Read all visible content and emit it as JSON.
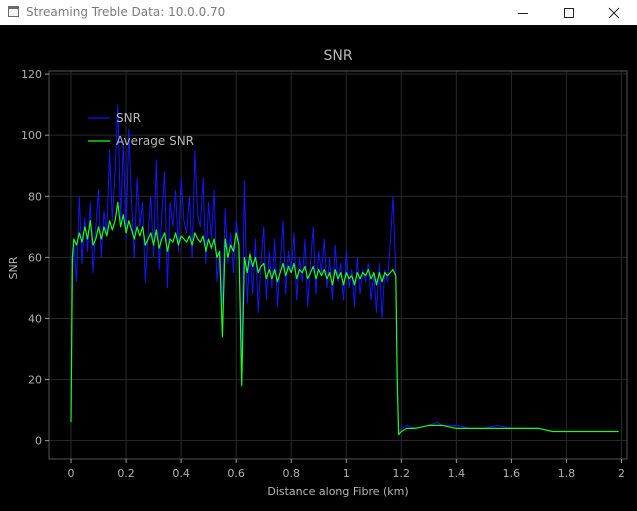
{
  "window": {
    "title": "Streaming Treble Data: 10.0.0.70"
  },
  "icons": {
    "app": "window-app-icon",
    "minimize": "minimize-icon",
    "maximize": "maximize-icon",
    "close": "close-icon"
  },
  "colors": {
    "background": "#000000",
    "axis": "#9a9a9a",
    "grid": "#2a2a2a",
    "snr": "#1414ff",
    "average_snr": "#19ff19"
  },
  "chart_data": {
    "type": "line",
    "title": "SNR",
    "xlabel": "Distance along Fibre (km)",
    "ylabel": "SNR",
    "xlim": [
      -0.08,
      2.02
    ],
    "ylim": [
      -6,
      121
    ],
    "xticks": [
      0,
      0.2,
      0.4,
      0.6,
      0.8,
      1,
      1.2,
      1.4,
      1.6,
      1.8,
      2
    ],
    "xtick_labels": [
      "0",
      "0.2",
      "0.4",
      "0.6",
      "0.8",
      "1",
      "1.2",
      "1.4",
      "1.6",
      "1.8",
      "2"
    ],
    "yticks": [
      0,
      20,
      40,
      60,
      80,
      100,
      120
    ],
    "ytick_labels": [
      "0",
      "20",
      "40",
      "60",
      "80",
      "100",
      "120"
    ],
    "grid": true,
    "legend_position": "top-left",
    "series": [
      {
        "name": "SNR",
        "color": "#1414ff",
        "x": [
          0,
          0.005,
          0.01,
          0.02,
          0.03,
          0.04,
          0.05,
          0.06,
          0.07,
          0.08,
          0.09,
          0.1,
          0.11,
          0.12,
          0.13,
          0.14,
          0.15,
          0.16,
          0.17,
          0.18,
          0.19,
          0.2,
          0.21,
          0.22,
          0.23,
          0.24,
          0.25,
          0.26,
          0.27,
          0.28,
          0.29,
          0.3,
          0.31,
          0.32,
          0.33,
          0.34,
          0.35,
          0.36,
          0.37,
          0.38,
          0.39,
          0.4,
          0.41,
          0.42,
          0.43,
          0.44,
          0.45,
          0.46,
          0.47,
          0.48,
          0.49,
          0.5,
          0.51,
          0.52,
          0.53,
          0.54,
          0.55,
          0.56,
          0.57,
          0.58,
          0.59,
          0.6,
          0.61,
          0.62,
          0.63,
          0.64,
          0.65,
          0.66,
          0.67,
          0.68,
          0.69,
          0.7,
          0.71,
          0.72,
          0.73,
          0.74,
          0.75,
          0.76,
          0.77,
          0.78,
          0.79,
          0.8,
          0.81,
          0.82,
          0.83,
          0.84,
          0.85,
          0.86,
          0.87,
          0.88,
          0.89,
          0.9,
          0.91,
          0.92,
          0.93,
          0.94,
          0.95,
          0.96,
          0.97,
          0.98,
          0.99,
          1.0,
          1.01,
          1.02,
          1.03,
          1.04,
          1.05,
          1.06,
          1.07,
          1.08,
          1.09,
          1.1,
          1.11,
          1.12,
          1.13,
          1.14,
          1.15,
          1.16,
          1.17,
          1.18,
          1.185,
          1.19,
          1.2,
          1.22,
          1.25,
          1.3,
          1.33,
          1.35,
          1.4,
          1.45,
          1.5,
          1.55,
          1.6,
          1.65,
          1.7,
          1.75,
          1.8,
          1.85,
          1.9,
          1.95,
          1.99
        ],
        "y": [
          6,
          55,
          65,
          52,
          80,
          58,
          73,
          62,
          78,
          55,
          70,
          82,
          60,
          75,
          68,
          95,
          72,
          88,
          110,
          72,
          98,
          66,
          102,
          78,
          60,
          86,
          70,
          78,
          52,
          68,
          80,
          60,
          92,
          56,
          74,
          88,
          50,
          78,
          70,
          82,
          62,
          86,
          72,
          68,
          80,
          60,
          95,
          74,
          70,
          86,
          58,
          78,
          66,
          82,
          52,
          62,
          45,
          76,
          58,
          68,
          55,
          72,
          65,
          28,
          85,
          45,
          62,
          48,
          66,
          42,
          58,
          70,
          46,
          62,
          50,
          66,
          44,
          58,
          72,
          48,
          62,
          55,
          68,
          46,
          60,
          52,
          66,
          44,
          58,
          70,
          48,
          62,
          55,
          66,
          50,
          60,
          46,
          64,
          52,
          58,
          46,
          62,
          50,
          56,
          44,
          60,
          48,
          56,
          52,
          58,
          46,
          55,
          42,
          58,
          40,
          56,
          52,
          65,
          80,
          55,
          22,
          3,
          4,
          5,
          4,
          5,
          6,
          5,
          5,
          4,
          4,
          5,
          4,
          4,
          4,
          3,
          3,
          3,
          3,
          3,
          3
        ]
      },
      {
        "name": "Average SNR",
        "color": "#19ff19",
        "x": [
          0,
          0.005,
          0.01,
          0.02,
          0.03,
          0.04,
          0.05,
          0.06,
          0.07,
          0.08,
          0.09,
          0.1,
          0.11,
          0.12,
          0.13,
          0.14,
          0.15,
          0.16,
          0.17,
          0.18,
          0.19,
          0.2,
          0.21,
          0.22,
          0.23,
          0.24,
          0.25,
          0.26,
          0.27,
          0.28,
          0.29,
          0.3,
          0.31,
          0.32,
          0.33,
          0.34,
          0.35,
          0.36,
          0.37,
          0.38,
          0.39,
          0.4,
          0.41,
          0.42,
          0.43,
          0.44,
          0.45,
          0.46,
          0.47,
          0.48,
          0.49,
          0.5,
          0.51,
          0.52,
          0.53,
          0.54,
          0.55,
          0.56,
          0.57,
          0.58,
          0.59,
          0.6,
          0.61,
          0.62,
          0.63,
          0.64,
          0.65,
          0.66,
          0.67,
          0.68,
          0.69,
          0.7,
          0.71,
          0.72,
          0.73,
          0.74,
          0.75,
          0.76,
          0.77,
          0.78,
          0.79,
          0.8,
          0.81,
          0.82,
          0.83,
          0.84,
          0.85,
          0.86,
          0.87,
          0.88,
          0.89,
          0.9,
          0.91,
          0.92,
          0.93,
          0.94,
          0.95,
          0.96,
          0.97,
          0.98,
          0.99,
          1.0,
          1.01,
          1.02,
          1.03,
          1.04,
          1.05,
          1.06,
          1.07,
          1.08,
          1.09,
          1.1,
          1.11,
          1.12,
          1.13,
          1.14,
          1.15,
          1.16,
          1.17,
          1.18,
          1.185,
          1.19,
          1.2,
          1.22,
          1.25,
          1.3,
          1.33,
          1.35,
          1.4,
          1.45,
          1.5,
          1.55,
          1.6,
          1.65,
          1.7,
          1.75,
          1.8,
          1.85,
          1.9,
          1.95,
          1.99
        ],
        "y": [
          6,
          60,
          66,
          64,
          68,
          65,
          70,
          66,
          72,
          64,
          66,
          70,
          66,
          70,
          67,
          72,
          69,
          72,
          78,
          70,
          74,
          68,
          72,
          69,
          66,
          70,
          67,
          70,
          64,
          66,
          68,
          64,
          69,
          63,
          66,
          68,
          62,
          66,
          65,
          68,
          64,
          67,
          66,
          65,
          67,
          64,
          68,
          66,
          65,
          67,
          62,
          66,
          63,
          66,
          60,
          62,
          34,
          66,
          60,
          64,
          62,
          68,
          64,
          18,
          60,
          55,
          61,
          57,
          60,
          55,
          57,
          58,
          53,
          56,
          53,
          56,
          52,
          55,
          58,
          54,
          57,
          55,
          58,
          53,
          56,
          55,
          57,
          53,
          55,
          57,
          53,
          56,
          54,
          56,
          53,
          55,
          51,
          56,
          53,
          55,
          51,
          55,
          53,
          54,
          51,
          55,
          53,
          55,
          54,
          56,
          53,
          55,
          51,
          55,
          52,
          55,
          54,
          55,
          56,
          54,
          20,
          2,
          3,
          4,
          4,
          5,
          5,
          5,
          4,
          4,
          4,
          4,
          4,
          4,
          4,
          3,
          3,
          3,
          3,
          3,
          3
        ]
      }
    ]
  }
}
